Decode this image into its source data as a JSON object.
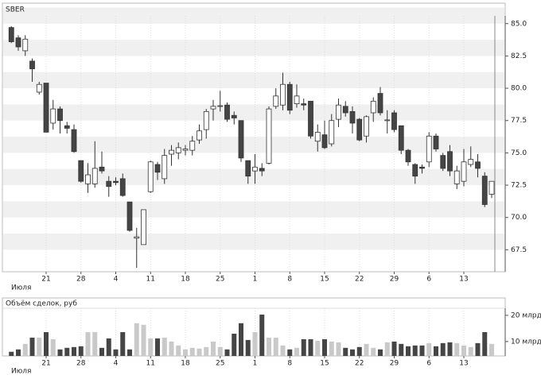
{
  "chart_data": [
    {
      "type": "candlestick",
      "title": "SBER",
      "month_label": "Июля",
      "categories": [
        null,
        null,
        null,
        null,
        null,
        "21",
        null,
        null,
        null,
        null,
        "28",
        null,
        null,
        null,
        null,
        "4",
        null,
        null,
        null,
        null,
        "11",
        null,
        null,
        null,
        null,
        "18",
        null,
        null,
        null,
        null,
        "25",
        null,
        null,
        null,
        null,
        "1",
        null,
        null,
        null,
        null,
        "8",
        null,
        null,
        null,
        null,
        "15",
        null,
        null,
        null,
        null,
        "22",
        null,
        null,
        null,
        null,
        "29",
        null,
        null,
        null,
        null,
        "6",
        null,
        null,
        null,
        null,
        "13",
        null,
        null,
        null,
        null
      ],
      "open": [
        84.7,
        83.9,
        82.9,
        82.1,
        79.7,
        80.4,
        77.3,
        78.4,
        77.1,
        76.8,
        74.4,
        72.6,
        72.6,
        73.9,
        72.8,
        72.8,
        73.0,
        71.2,
        68.4,
        67.9,
        72.0,
        74.1,
        73.0,
        74.9,
        75.0,
        75.2,
        75.2,
        76.0,
        76.8,
        78.4,
        78.6,
        78.7,
        77.9,
        77.5,
        74.4,
        73.6,
        73.8,
        74.2,
        78.6,
        78.7,
        80.3,
        78.8,
        78.8,
        79.0,
        75.9,
        76.4,
        75.7,
        77.6,
        78.6,
        78.2,
        77.6,
        76.3,
        78.1,
        79.6,
        77.5,
        78.1,
        77.1,
        75.2,
        74.1,
        73.9,
        74.3,
        76.3,
        74.8,
        75.1,
        72.6,
        72.8,
        74.1,
        74.3,
        73.2,
        71.8
      ],
      "high": [
        84.8,
        84.1,
        84.1,
        82.3,
        80.5,
        80.4,
        79.1,
        78.6,
        77.4,
        77.2,
        74.4,
        74.2,
        75.9,
        75.1,
        73.2,
        73.1,
        73.4,
        71.2,
        69.2,
        70.6,
        74.4,
        74.3,
        75.3,
        75.6,
        75.8,
        75.6,
        76.3,
        77.2,
        78.4,
        79.1,
        79.8,
        78.9,
        78.2,
        77.5,
        74.4,
        74.9,
        74.2,
        78.6,
        80.0,
        81.2,
        80.5,
        80.3,
        79.2,
        79.0,
        77.2,
        77.5,
        78.0,
        79.2,
        79.0,
        78.6,
        77.7,
        77.9,
        79.3,
        80.1,
        78.3,
        78.3,
        77.1,
        75.3,
        74.2,
        74.1,
        76.6,
        76.5,
        75.0,
        75.6,
        74.0,
        75.3,
        75.5,
        74.9,
        73.5,
        72.8
      ],
      "low": [
        83.5,
        82.9,
        82.5,
        80.5,
        79.5,
        76.6,
        76.8,
        76.5,
        76.5,
        75.0,
        72.7,
        71.9,
        72.3,
        73.4,
        71.6,
        72.5,
        71.6,
        68.9,
        66.1,
        67.9,
        71.9,
        72.9,
        72.6,
        74.0,
        74.5,
        74.8,
        74.8,
        75.7,
        76.1,
        77.5,
        78.2,
        77.4,
        77.2,
        74.3,
        72.6,
        72.6,
        73.2,
        74.1,
        78.4,
        78.3,
        78.0,
        78.5,
        78.3,
        76.1,
        75.1,
        75.3,
        75.5,
        77.0,
        77.8,
        76.5,
        75.9,
        75.8,
        77.4,
        77.9,
        76.5,
        76.6,
        74.9,
        74.0,
        72.6,
        73.4,
        73.9,
        75.1,
        73.6,
        73.2,
        72.2,
        72.4,
        73.9,
        73.1,
        70.8,
        71.5
      ],
      "close": [
        83.6,
        83.2,
        83.8,
        81.5,
        80.3,
        76.6,
        78.4,
        77.5,
        76.9,
        75.1,
        72.8,
        73.3,
        73.8,
        73.6,
        72.4,
        72.7,
        71.7,
        69.0,
        68.5,
        70.6,
        74.3,
        73.5,
        74.8,
        75.2,
        75.4,
        75.3,
        75.9,
        76.7,
        78.2,
        78.6,
        78.65,
        77.6,
        77.7,
        74.6,
        73.2,
        73.9,
        73.6,
        78.4,
        79.4,
        80.3,
        78.3,
        79.4,
        78.7,
        76.3,
        76.6,
        75.4,
        77.5,
        78.7,
        78.1,
        77.3,
        76.0,
        77.8,
        79.0,
        78.1,
        77.55,
        76.8,
        75.2,
        74.3,
        73.2,
        73.8,
        76.3,
        75.3,
        73.8,
        73.6,
        73.6,
        74.3,
        74.5,
        73.8,
        71.0,
        72.8
      ],
      "up_color": "#ffffff",
      "down_color": "#454545",
      "ylim": [
        65.8,
        85.6
      ],
      "yticks": [
        {
          "value": 85,
          "label": "85.0"
        },
        {
          "value": 82.5,
          "label": "82.5"
        },
        {
          "value": 80,
          "label": "80.0"
        },
        {
          "value": 77.5,
          "label": "77.5"
        },
        {
          "value": 75,
          "label": "75.0"
        },
        {
          "value": 72.5,
          "label": "72.5"
        },
        {
          "value": 70,
          "label": "70.0"
        },
        {
          "value": 67.5,
          "label": "67.5"
        }
      ]
    },
    {
      "type": "bar",
      "title": "Объём сделок, руб",
      "month_label": "Июля",
      "categories": [
        null,
        null,
        null,
        null,
        null,
        "21",
        null,
        null,
        null,
        null,
        "28",
        null,
        null,
        null,
        null,
        "4",
        null,
        null,
        null,
        null,
        "11",
        null,
        null,
        null,
        null,
        "18",
        null,
        null,
        null,
        null,
        "25",
        null,
        null,
        null,
        null,
        "1",
        null,
        null,
        null,
        null,
        "8",
        null,
        null,
        null,
        null,
        "15",
        null,
        null,
        null,
        null,
        "22",
        null,
        null,
        null,
        null,
        "29",
        null,
        null,
        null,
        null,
        "6",
        null,
        null,
        null,
        null,
        "13",
        null,
        null,
        null,
        null
      ],
      "values": [
        6.1,
        7.0,
        9.1,
        11.5,
        11.5,
        13.6,
        10.9,
        7.0,
        7.6,
        7.9,
        8.2,
        13.6,
        13.6,
        7.6,
        11.2,
        7.0,
        13.6,
        7.0,
        17.0,
        16.4,
        11.2,
        11.2,
        11.5,
        10.0,
        8.5,
        7.0,
        7.6,
        7.3,
        7.9,
        10.0,
        7.9,
        7.0,
        13.0,
        17.0,
        10.6,
        13.6,
        20.3,
        11.5,
        11.5,
        8.5,
        7.0,
        7.6,
        10.9,
        10.9,
        10.3,
        10.9,
        10.0,
        9.7,
        7.6,
        7.0,
        7.9,
        9.1,
        7.6,
        7.0,
        9.7,
        10.0,
        9.1,
        8.2,
        8.5,
        8.5,
        9.4,
        8.2,
        9.4,
        9.7,
        9.4,
        8.5,
        7.9,
        9.4,
        13.6,
        9.1
      ],
      "up_color": "#c9c9c9",
      "down_color": "#454545",
      "ylim": [
        4.5,
        22.7
      ],
      "yticks": [
        {
          "value": 20,
          "label": "20 млрд"
        },
        {
          "value": 10,
          "label": "10 млрд"
        }
      ]
    }
  ]
}
